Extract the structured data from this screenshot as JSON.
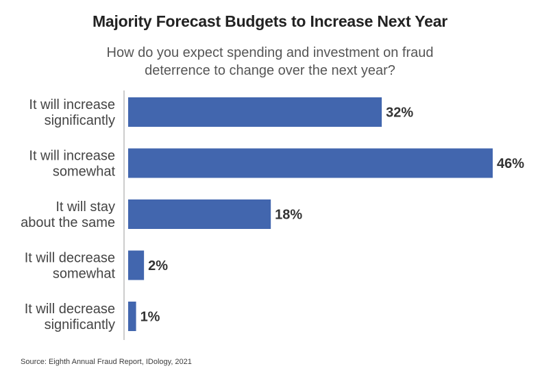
{
  "chart_data": {
    "type": "bar",
    "orientation": "horizontal",
    "title": "Majority Forecast Budgets to Increase Next Year",
    "subtitle": "How do you expect spending and investment on fraud deterrence to change over the next year?",
    "categories": [
      "It will increase significantly",
      "It will increase somewhat",
      "It will stay about the same",
      "It will decrease somewhat",
      "It will decrease significantly"
    ],
    "category_lines": [
      [
        "It will increase",
        "significantly"
      ],
      [
        "It will increase",
        "somewhat"
      ],
      [
        "It will stay",
        "about the same"
      ],
      [
        "It will decrease",
        "somewhat"
      ],
      [
        "It will decrease",
        "significantly"
      ]
    ],
    "values": [
      32,
      46,
      18,
      2,
      1
    ],
    "value_labels": [
      "32%",
      "46%",
      "18%",
      "2%",
      "1%"
    ],
    "xlim": [
      0,
      46
    ],
    "grid": false,
    "bar_color": "#4266ae",
    "source": "Source:  Eighth Annual Fraud Report, IDology, 2021"
  }
}
